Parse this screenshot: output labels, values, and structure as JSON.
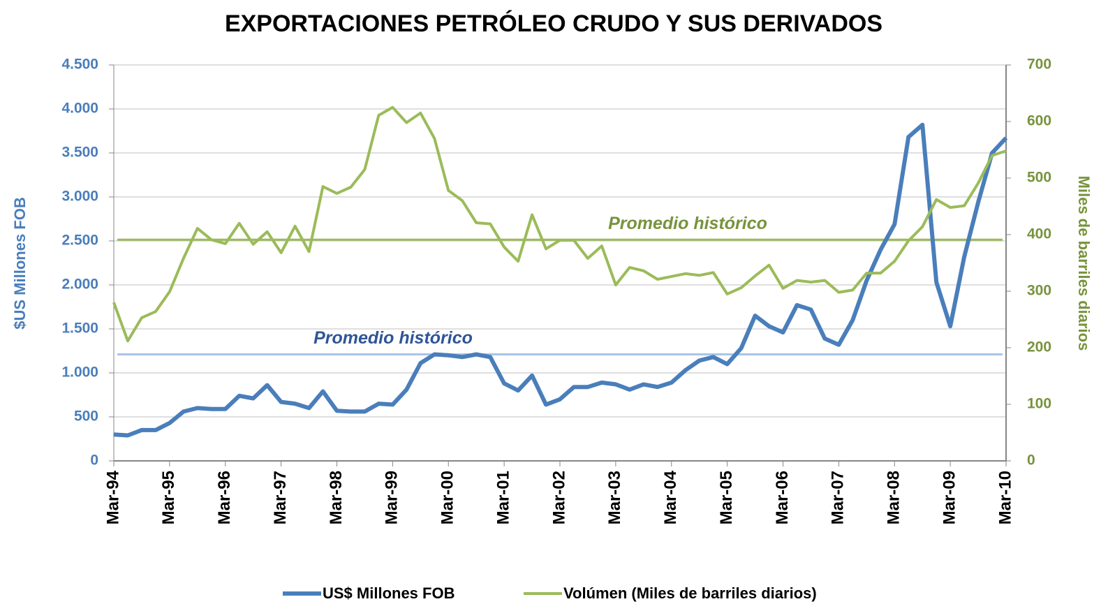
{
  "chart_data": {
    "type": "line",
    "title": "EXPORTACIONES PETRÓLEO CRUDO Y SUS DERIVADOS",
    "y_label": "$US Millones FOB",
    "y2_label": "Miles de barriles diarios",
    "categories": [
      "Mar-94",
      null,
      null,
      null,
      "Mar-95",
      null,
      null,
      null,
      "Mar-96",
      null,
      null,
      null,
      "Mar-97",
      null,
      null,
      null,
      "Mar-98",
      null,
      null,
      null,
      "Mar-99",
      null,
      null,
      null,
      "Mar-00",
      null,
      null,
      null,
      "Mar-01",
      null,
      null,
      null,
      "Mar-02",
      null,
      null,
      null,
      "Mar-03",
      null,
      null,
      null,
      "Mar-04",
      null,
      null,
      null,
      "Mar-05",
      null,
      null,
      null,
      "Mar-06",
      null,
      null,
      null,
      "Mar-07",
      null,
      null,
      null,
      "Mar-08",
      null,
      null,
      null,
      "Mar-09",
      null,
      null,
      null,
      "Mar-10"
    ],
    "series": [
      {
        "name": "US$ Millones FOB",
        "color": "#4a7ebb",
        "axis": "y",
        "values": [
          300,
          290,
          350,
          350,
          430,
          560,
          600,
          590,
          590,
          740,
          710,
          860,
          670,
          650,
          600,
          790,
          570,
          560,
          560,
          650,
          640,
          810,
          1110,
          1210,
          1200,
          1180,
          1210,
          1180,
          880,
          800,
          970,
          640,
          700,
          840,
          840,
          890,
          870,
          810,
          870,
          840,
          890,
          1030,
          1140,
          1180,
          1100,
          1280,
          1650,
          1530,
          1460,
          1770,
          1720,
          1390,
          1320,
          1600,
          2050,
          2400,
          2690,
          3680,
          3820,
          2030,
          1530,
          2320,
          2940,
          3500,
          3670
        ]
      },
      {
        "name": "Volúmen (Miles de barriles diarios)",
        "color": "#9bbb59",
        "axis": "y2",
        "values": [
          280,
          212,
          253,
          264,
          299,
          358,
          411,
          391,
          384,
          420,
          383,
          405,
          368,
          415,
          370,
          485,
          473,
          484,
          515,
          611,
          625,
          598,
          615,
          570,
          478,
          460,
          421,
          419,
          378,
          353,
          435,
          375,
          390,
          390,
          358,
          380,
          311,
          342,
          336,
          321,
          326,
          331,
          328,
          333,
          295,
          306,
          327,
          346,
          305,
          319,
          316,
          319,
          298,
          302,
          332,
          332,
          353,
          389,
          414,
          462,
          448,
          451,
          491,
          540,
          548
        ]
      }
    ],
    "reference_lines": [
      {
        "label": "Promedio histórico",
        "value": 1210,
        "axis": "y",
        "color": "#a8c4e6"
      },
      {
        "label": "Promedio histórico",
        "value": 391,
        "axis": "y2",
        "color": "#9bbb59"
      }
    ],
    "ylim": [
      0,
      4500
    ],
    "yticks": [
      0,
      500,
      {
        "value": 1000,
        "label": "1.000"
      },
      {
        "value": 1500,
        "label": "1.500"
      },
      {
        "value": 2000,
        "label": "2.000"
      },
      {
        "value": 2500,
        "label": "2.500"
      },
      {
        "value": 3000,
        "label": "3.000"
      },
      {
        "value": 3500,
        "label": "3.500"
      },
      {
        "value": 4000,
        "label": "4.000"
      },
      {
        "value": 4500,
        "label": "4.500"
      }
    ],
    "y2lim": [
      0,
      700
    ],
    "y2ticks": [
      0,
      100,
      200,
      300,
      400,
      500,
      600,
      700
    ],
    "grid": true,
    "legend": "bottom"
  }
}
